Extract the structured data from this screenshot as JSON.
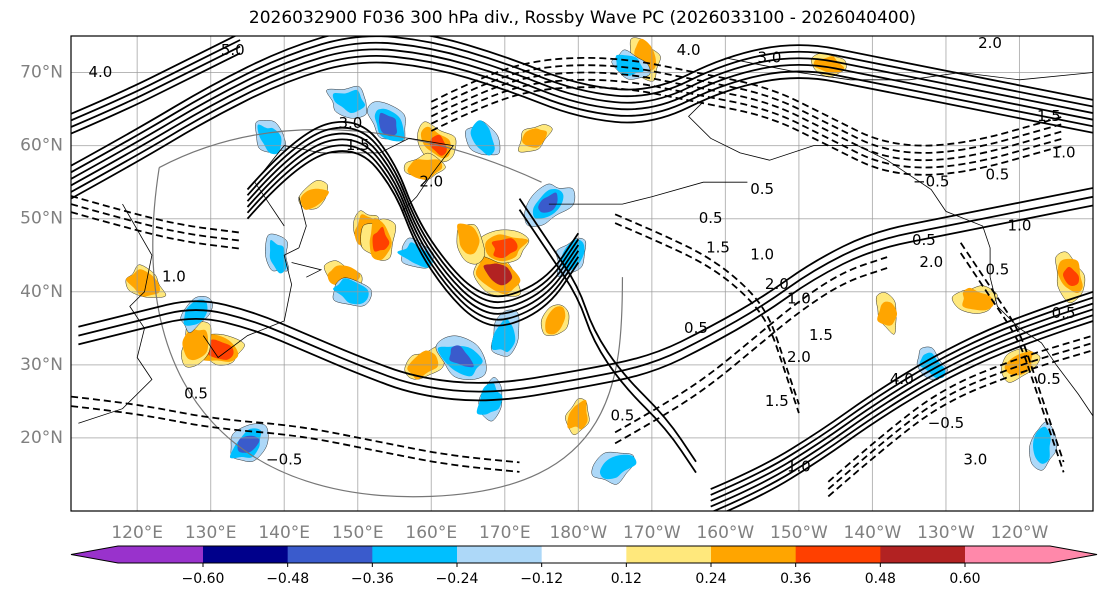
{
  "chart_data": {
    "type": "heatmap",
    "title": "2026032900 F036 300 hPa div., Rossby Wave PC (2026033100 - 2026040400)",
    "lat_ticks": [
      {
        "lat": 70,
        "label": "70°N"
      },
      {
        "lat": 60,
        "label": "60°N"
      },
      {
        "lat": 50,
        "label": "50°N"
      },
      {
        "lat": 40,
        "label": "40°N"
      },
      {
        "lat": 30,
        "label": "30°N"
      },
      {
        "lat": 20,
        "label": "20°N"
      }
    ],
    "lon_ticks": [
      {
        "lon": 120,
        "label": "120°E"
      },
      {
        "lon": 130,
        "label": "130°E"
      },
      {
        "lon": 140,
        "label": "140°E"
      },
      {
        "lon": 150,
        "label": "150°E"
      },
      {
        "lon": 160,
        "label": "160°E"
      },
      {
        "lon": 170,
        "label": "170°E"
      },
      {
        "lon": 180,
        "label": "180°W"
      },
      {
        "lon": 190,
        "label": "170°W"
      },
      {
        "lon": 200,
        "label": "160°W"
      },
      {
        "lon": 210,
        "label": "150°W"
      },
      {
        "lon": 220,
        "label": "140°W"
      },
      {
        "lon": 230,
        "label": "130°W"
      },
      {
        "lon": 240,
        "label": "120°W"
      }
    ],
    "lon_range": [
      111,
      250
    ],
    "lat_range": [
      10,
      75
    ],
    "colorbar": {
      "extend": "both",
      "levels": [
        -0.72,
        -0.6,
        -0.48,
        -0.36,
        -0.24,
        -0.12,
        0.12,
        0.24,
        0.36,
        0.48,
        0.6,
        0.72
      ],
      "colors": [
        "#9932cc",
        "#00008b",
        "#3a5bcc",
        "#00bfff",
        "#add8f8",
        "#ffffff",
        "#ffe87c",
        "#ffa500",
        "#ff4000",
        "#b22222",
        "#ff88aa"
      ],
      "tick_values": [
        -0.6,
        -0.48,
        -0.36,
        -0.24,
        -0.12,
        0.12,
        0.24,
        0.36,
        0.48,
        0.6
      ],
      "tick_labels": [
        "−0.60",
        "−0.48",
        "−0.36",
        "−0.24",
        "−0.12",
        "0.12",
        "0.24",
        "0.36",
        "0.48",
        "0.60"
      ]
    },
    "shaded_regions": [
      {
        "lon": 151,
        "lat": 48.5,
        "value": 0.3
      },
      {
        "lon": 153,
        "lat": 47,
        "value": 0.4
      },
      {
        "lon": 169,
        "lat": 42.5,
        "value": 0.55
      },
      {
        "lon": 170,
        "lat": 46,
        "value": 0.45
      },
      {
        "lon": 161,
        "lat": 60,
        "value": 0.4
      },
      {
        "lon": 159,
        "lat": 57,
        "value": 0.3
      },
      {
        "lon": 131,
        "lat": 32,
        "value": 0.45
      },
      {
        "lon": 128,
        "lat": 33,
        "value": 0.35
      },
      {
        "lon": 121,
        "lat": 41,
        "value": 0.35
      },
      {
        "lon": 144,
        "lat": 53,
        "value": 0.25
      },
      {
        "lon": 148,
        "lat": 42,
        "value": 0.3
      },
      {
        "lon": 165,
        "lat": 47,
        "value": 0.3
      },
      {
        "lon": 177,
        "lat": 36,
        "value": 0.25
      },
      {
        "lon": 189,
        "lat": 72,
        "value": 0.3
      },
      {
        "lon": 214,
        "lat": 71,
        "value": 0.25
      },
      {
        "lon": 234,
        "lat": 39,
        "value": 0.3
      },
      {
        "lon": 247,
        "lat": 42,
        "value": 0.4
      },
      {
        "lon": 240,
        "lat": 30,
        "value": 0.3
      },
      {
        "lon": 174,
        "lat": 61,
        "value": 0.25
      },
      {
        "lon": 159,
        "lat": 30,
        "value": 0.3
      },
      {
        "lon": 180,
        "lat": 23,
        "value": 0.25
      },
      {
        "lon": 222,
        "lat": 37,
        "value": 0.25
      },
      {
        "lon": 154,
        "lat": 63,
        "value": -0.4
      },
      {
        "lon": 167,
        "lat": 61,
        "value": -0.3
      },
      {
        "lon": 176,
        "lat": 52,
        "value": -0.45
      },
      {
        "lon": 170,
        "lat": 34,
        "value": -0.35
      },
      {
        "lon": 164,
        "lat": 31,
        "value": -0.45
      },
      {
        "lon": 135,
        "lat": 19,
        "value": -0.4
      },
      {
        "lon": 158,
        "lat": 45,
        "value": -0.3
      },
      {
        "lon": 149,
        "lat": 40,
        "value": -0.3
      },
      {
        "lon": 179,
        "lat": 45,
        "value": -0.3
      },
      {
        "lon": 187,
        "lat": 71,
        "value": -0.25
      },
      {
        "lon": 139,
        "lat": 45,
        "value": -0.25
      },
      {
        "lon": 128,
        "lat": 37,
        "value": -0.3
      },
      {
        "lon": 168,
        "lat": 25,
        "value": -0.3
      },
      {
        "lon": 185,
        "lat": 16,
        "value": -0.35
      },
      {
        "lon": 228,
        "lat": 30,
        "value": -0.25
      },
      {
        "lon": 243,
        "lat": 19,
        "value": -0.3
      },
      {
        "lon": 138,
        "lat": 61,
        "value": -0.25
      },
      {
        "lon": 149,
        "lat": 66,
        "value": -0.35
      }
    ],
    "contour_labels": [
      "4.0",
      "5.0",
      "3.0",
      "2.0",
      "1.5",
      "1.0",
      "0.5",
      "−0.5",
      "4.0",
      "3.0",
      "2.0",
      "1.5",
      "1.0",
      "0.5",
      "−0.5",
      "0.5",
      "0.5",
      "0.5",
      "1.0",
      "1.5",
      "2.0",
      "0.5",
      "−0.5",
      "1.0",
      "1.5",
      "0.5",
      "1.0",
      "1.0",
      "0.5",
      "0.5",
      "1.5",
      "2.0",
      "4.0",
      "3.0",
      "2.0",
      "0.5"
    ]
  }
}
